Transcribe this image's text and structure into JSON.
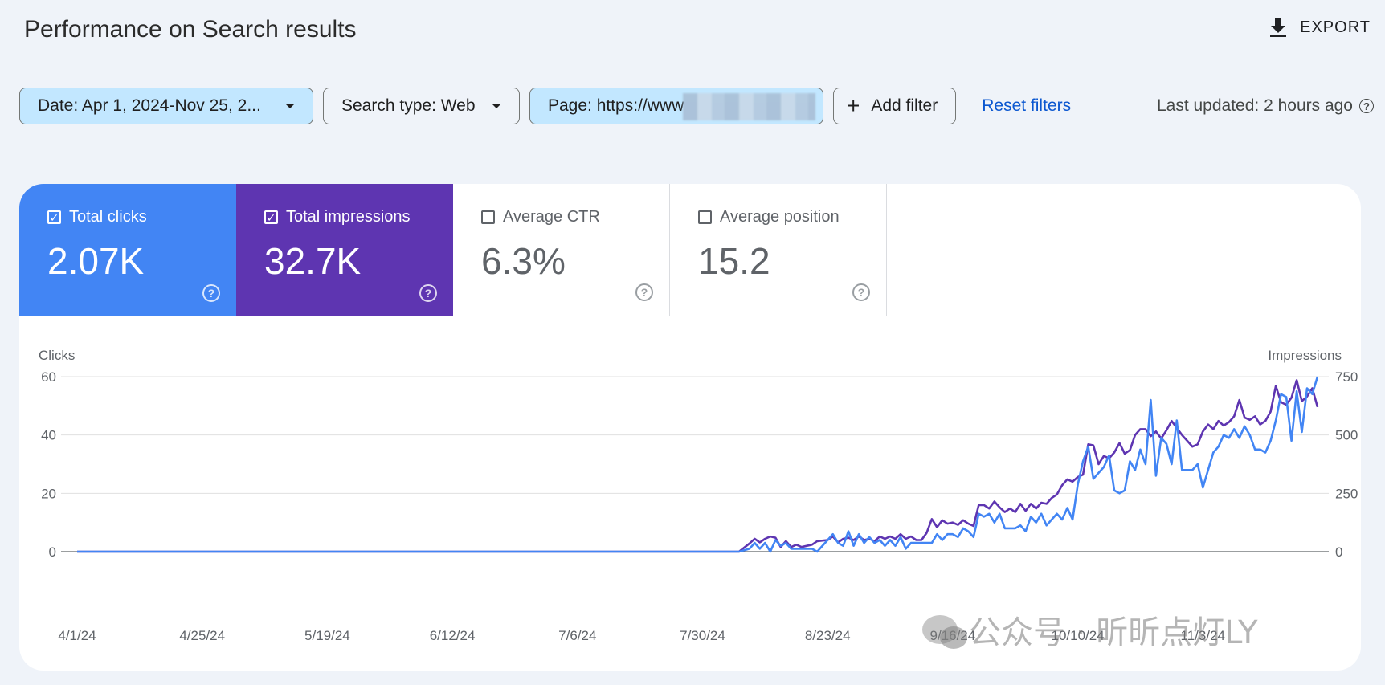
{
  "header": {
    "title": "Performance on Search results",
    "export_label": "EXPORT"
  },
  "filters": {
    "date": "Date: Apr 1, 2024-Nov 25, 2...",
    "search_type": "Search type: Web",
    "page": "Page: https://www",
    "add_filter": "Add filter",
    "reset": "Reset filters",
    "last_updated": "Last updated: 2 hours ago"
  },
  "metrics": [
    {
      "label": "Total clicks",
      "value": "2.07K",
      "checked": true,
      "color": "#4285f4"
    },
    {
      "label": "Total impressions",
      "value": "32.7K",
      "checked": true,
      "color": "#5e35b1"
    },
    {
      "label": "Average CTR",
      "value": "6.3%",
      "checked": false
    },
    {
      "label": "Average position",
      "value": "15.2",
      "checked": false
    }
  ],
  "watermark": {
    "text": "公众号 · 昕昕点灯LY"
  },
  "chart_data": {
    "type": "line",
    "ylabel_left": "Clicks",
    "ylabel_right": "Impressions",
    "y_left_ticks": [
      0,
      20,
      40,
      60
    ],
    "y_right_ticks": [
      0,
      250,
      500,
      750
    ],
    "ylim_left": [
      0,
      60
    ],
    "ylim_right": [
      0,
      750
    ],
    "x_ticks": [
      "4/1/24",
      "4/25/24",
      "5/19/24",
      "6/12/24",
      "7/6/24",
      "7/30/24",
      "8/23/24",
      "9/16/24",
      "10/10/24",
      "11/3/24"
    ],
    "x_start": "4/1/24",
    "x_end": "11/25/24",
    "grid": true,
    "series": [
      {
        "name": "Clicks",
        "axis": "left",
        "color": "#4285f4",
        "points": [
          [
            "8/6/24",
            0
          ],
          [
            "8/8/24",
            1
          ],
          [
            "8/9/24",
            3
          ],
          [
            "8/10/24",
            1
          ],
          [
            "8/11/24",
            3
          ],
          [
            "8/12/24",
            0
          ],
          [
            "8/13/24",
            4
          ],
          [
            "8/14/24",
            2
          ],
          [
            "8/15/24",
            3
          ],
          [
            "8/16/24",
            1
          ],
          [
            "8/18/24",
            1
          ],
          [
            "8/20/24",
            1
          ],
          [
            "8/21/24",
            0
          ],
          [
            "8/23/24",
            4
          ],
          [
            "8/24/24",
            6
          ],
          [
            "8/25/24",
            3
          ],
          [
            "8/26/24",
            2
          ],
          [
            "8/27/24",
            7
          ],
          [
            "8/28/24",
            2
          ],
          [
            "8/29/24",
            6
          ],
          [
            "8/30/24",
            3
          ],
          [
            "8/31/24",
            5
          ],
          [
            "9/1/24",
            3
          ],
          [
            "9/2/24",
            4
          ],
          [
            "9/3/24",
            2
          ],
          [
            "9/4/24",
            4
          ],
          [
            "9/5/24",
            2
          ],
          [
            "9/6/24",
            5
          ],
          [
            "9/7/24",
            1
          ],
          [
            "9/8/24",
            3
          ],
          [
            "9/10/24",
            3
          ],
          [
            "9/12/24",
            3
          ],
          [
            "9/13/24",
            6
          ],
          [
            "9/14/24",
            4
          ],
          [
            "9/15/24",
            6
          ],
          [
            "9/16/24",
            6
          ],
          [
            "9/17/24",
            5
          ],
          [
            "9/18/24",
            8
          ],
          [
            "9/19/24",
            7
          ],
          [
            "9/20/24",
            5
          ],
          [
            "9/21/24",
            13
          ],
          [
            "9/22/24",
            12
          ],
          [
            "9/23/24",
            13
          ],
          [
            "9/24/24",
            10
          ],
          [
            "9/25/24",
            13
          ],
          [
            "9/26/24",
            8
          ],
          [
            "9/28/24",
            8
          ],
          [
            "9/29/24",
            9
          ],
          [
            "9/30/24",
            7
          ],
          [
            "10/1/24",
            12
          ],
          [
            "10/2/24",
            10
          ],
          [
            "10/3/24",
            13
          ],
          [
            "10/4/24",
            9
          ],
          [
            "10/5/24",
            11
          ],
          [
            "10/6/24",
            13
          ],
          [
            "10/7/24",
            11
          ],
          [
            "10/8/24",
            15
          ],
          [
            "10/9/24",
            11
          ],
          [
            "10/10/24",
            23
          ],
          [
            "10/11/24",
            31
          ],
          [
            "10/12/24",
            36
          ],
          [
            "10/13/24",
            25
          ],
          [
            "10/14/24",
            27
          ],
          [
            "10/15/24",
            29
          ],
          [
            "10/16/24",
            33
          ],
          [
            "10/17/24",
            21
          ],
          [
            "10/18/24",
            20
          ],
          [
            "10/19/24",
            21
          ],
          [
            "10/20/24",
            31
          ],
          [
            "10/21/24",
            28
          ],
          [
            "10/22/24",
            35
          ],
          [
            "10/23/24",
            30
          ],
          [
            "10/24/24",
            52
          ],
          [
            "10/25/24",
            26
          ],
          [
            "10/26/24",
            39
          ],
          [
            "10/27/24",
            37
          ],
          [
            "10/28/24",
            30
          ],
          [
            "10/29/24",
            45
          ],
          [
            "10/30/24",
            28
          ],
          [
            "11/1/24",
            28
          ],
          [
            "11/2/24",
            30
          ],
          [
            "11/3/24",
            22
          ],
          [
            "11/4/24",
            28
          ],
          [
            "11/5/24",
            34
          ],
          [
            "11/6/24",
            36
          ],
          [
            "11/7/24",
            40
          ],
          [
            "11/8/24",
            39
          ],
          [
            "11/9/24",
            42
          ],
          [
            "11/10/24",
            39
          ],
          [
            "11/11/24",
            43
          ],
          [
            "11/12/24",
            40
          ],
          [
            "11/13/24",
            35
          ],
          [
            "11/14/24",
            35
          ],
          [
            "11/15/24",
            34
          ],
          [
            "11/16/24",
            38
          ],
          [
            "11/17/24",
            45
          ],
          [
            "11/18/24",
            54
          ],
          [
            "11/19/24",
            53
          ],
          [
            "11/20/24",
            38
          ],
          [
            "11/21/24",
            55
          ],
          [
            "11/22/24",
            41
          ],
          [
            "11/23/24",
            56
          ],
          [
            "11/24/24",
            54
          ],
          [
            "11/25/24",
            60
          ]
        ]
      },
      {
        "name": "Impressions",
        "axis": "right",
        "color": "#5e35b1",
        "points": [
          [
            "8/6/24",
            0
          ],
          [
            "8/8/24",
            35
          ],
          [
            "8/9/24",
            55
          ],
          [
            "8/10/24",
            40
          ],
          [
            "8/11/24",
            55
          ],
          [
            "8/12/24",
            65
          ],
          [
            "8/13/24",
            60
          ],
          [
            "8/14/24",
            20
          ],
          [
            "8/15/24",
            45
          ],
          [
            "8/16/24",
            20
          ],
          [
            "8/17/24",
            30
          ],
          [
            "8/18/24",
            20
          ],
          [
            "8/20/24",
            30
          ],
          [
            "8/21/24",
            45
          ],
          [
            "8/23/24",
            50
          ],
          [
            "8/24/24",
            65
          ],
          [
            "8/25/24",
            40
          ],
          [
            "8/26/24",
            55
          ],
          [
            "8/27/24",
            60
          ],
          [
            "8/28/24",
            50
          ],
          [
            "8/29/24",
            65
          ],
          [
            "8/30/24",
            50
          ],
          [
            "8/31/24",
            55
          ],
          [
            "9/1/24",
            45
          ],
          [
            "9/2/24",
            65
          ],
          [
            "9/3/24",
            55
          ],
          [
            "9/4/24",
            65
          ],
          [
            "9/5/24",
            55
          ],
          [
            "9/6/24",
            75
          ],
          [
            "9/7/24",
            55
          ],
          [
            "9/8/24",
            65
          ],
          [
            "9/9/24",
            50
          ],
          [
            "9/10/24",
            50
          ],
          [
            "9/11/24",
            80
          ],
          [
            "9/12/24",
            140
          ],
          [
            "9/13/24",
            105
          ],
          [
            "9/14/24",
            135
          ],
          [
            "9/15/24",
            120
          ],
          [
            "9/16/24",
            125
          ],
          [
            "9/17/24",
            115
          ],
          [
            "9/18/24",
            135
          ],
          [
            "9/19/24",
            120
          ],
          [
            "9/20/24",
            110
          ],
          [
            "9/21/24",
            200
          ],
          [
            "9/22/24",
            200
          ],
          [
            "9/23/24",
            185
          ],
          [
            "9/24/24",
            215
          ],
          [
            "9/25/24",
            190
          ],
          [
            "9/26/24",
            170
          ],
          [
            "9/27/24",
            185
          ],
          [
            "9/28/24",
            170
          ],
          [
            "9/29/24",
            205
          ],
          [
            "9/30/24",
            175
          ],
          [
            "10/1/24",
            205
          ],
          [
            "10/2/24",
            185
          ],
          [
            "10/3/24",
            210
          ],
          [
            "10/4/24",
            205
          ],
          [
            "10/5/24",
            230
          ],
          [
            "10/6/24",
            245
          ],
          [
            "10/7/24",
            285
          ],
          [
            "10/8/24",
            310
          ],
          [
            "10/9/24",
            300
          ],
          [
            "10/10/24",
            320
          ],
          [
            "10/11/24",
            330
          ],
          [
            "10/12/24",
            460
          ],
          [
            "10/13/24",
            455
          ],
          [
            "10/14/24",
            375
          ],
          [
            "10/15/24",
            410
          ],
          [
            "10/16/24",
            400
          ],
          [
            "10/17/24",
            425
          ],
          [
            "10/18/24",
            465
          ],
          [
            "10/19/24",
            420
          ],
          [
            "10/20/24",
            435
          ],
          [
            "10/21/24",
            500
          ],
          [
            "10/22/24",
            525
          ],
          [
            "10/23/24",
            525
          ],
          [
            "10/24/24",
            495
          ],
          [
            "10/25/24",
            515
          ],
          [
            "10/26/24",
            485
          ],
          [
            "10/27/24",
            520
          ],
          [
            "10/28/24",
            560
          ],
          [
            "10/29/24",
            530
          ],
          [
            "10/30/24",
            500
          ],
          [
            "10/31/24",
            475
          ],
          [
            "11/1/24",
            450
          ],
          [
            "11/2/24",
            460
          ],
          [
            "11/3/24",
            515
          ],
          [
            "11/4/24",
            545
          ],
          [
            "11/5/24",
            525
          ],
          [
            "11/6/24",
            560
          ],
          [
            "11/7/24",
            540
          ],
          [
            "11/8/24",
            555
          ],
          [
            "11/9/24",
            580
          ],
          [
            "11/10/24",
            650
          ],
          [
            "11/11/24",
            575
          ],
          [
            "11/12/24",
            565
          ],
          [
            "11/13/24",
            580
          ],
          [
            "11/14/24",
            545
          ],
          [
            "11/15/24",
            560
          ],
          [
            "11/16/24",
            600
          ],
          [
            "11/17/24",
            710
          ],
          [
            "11/18/24",
            640
          ],
          [
            "11/19/24",
            630
          ],
          [
            "11/20/24",
            660
          ],
          [
            "11/21/24",
            735
          ],
          [
            "11/22/24",
            645
          ],
          [
            "11/23/24",
            665
          ],
          [
            "11/24/24",
            700
          ],
          [
            "11/25/24",
            620
          ]
        ]
      }
    ]
  }
}
